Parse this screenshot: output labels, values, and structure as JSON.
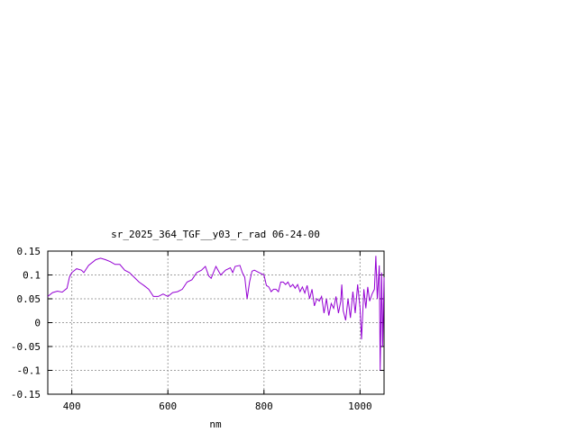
{
  "chart_data": {
    "type": "line",
    "title": "sr_2025_364_TGF__y03_r_rad 06-24-00",
    "xlabel": "nm",
    "ylabel": "",
    "xlim": [
      350,
      1050
    ],
    "ylim": [
      -0.15,
      0.15
    ],
    "grid": true,
    "legend": "none",
    "x_ticks": [
      400,
      600,
      800,
      1000
    ],
    "x_tick_labels": [
      "400",
      "600",
      "800",
      "1000"
    ],
    "y_ticks": [
      0.15,
      0.1,
      0.05,
      0,
      -0.05,
      -0.1,
      -0.15
    ],
    "y_tick_labels": [
      "0.15",
      "0.1",
      "0.05",
      "0",
      "-0.05",
      "-0.1",
      "-0.15"
    ],
    "series": [
      {
        "color": "#9400d3",
        "points": [
          [
            350,
            0.055
          ],
          [
            360,
            0.063
          ],
          [
            370,
            0.066
          ],
          [
            380,
            0.064
          ],
          [
            390,
            0.072
          ],
          [
            395,
            0.095
          ],
          [
            400,
            0.105
          ],
          [
            410,
            0.113
          ],
          [
            420,
            0.11
          ],
          [
            425,
            0.105
          ],
          [
            435,
            0.12
          ],
          [
            450,
            0.132
          ],
          [
            460,
            0.135
          ],
          [
            470,
            0.132
          ],
          [
            480,
            0.128
          ],
          [
            490,
            0.122
          ],
          [
            500,
            0.122
          ],
          [
            510,
            0.11
          ],
          [
            520,
            0.105
          ],
          [
            530,
            0.095
          ],
          [
            540,
            0.085
          ],
          [
            550,
            0.078
          ],
          [
            560,
            0.07
          ],
          [
            570,
            0.055
          ],
          [
            580,
            0.055
          ],
          [
            590,
            0.06
          ],
          [
            600,
            0.055
          ],
          [
            610,
            0.063
          ],
          [
            620,
            0.065
          ],
          [
            630,
            0.07
          ],
          [
            640,
            0.085
          ],
          [
            650,
            0.09
          ],
          [
            660,
            0.105
          ],
          [
            670,
            0.11
          ],
          [
            678,
            0.118
          ],
          [
            685,
            0.098
          ],
          [
            690,
            0.093
          ],
          [
            700,
            0.118
          ],
          [
            710,
            0.1
          ],
          [
            720,
            0.11
          ],
          [
            730,
            0.115
          ],
          [
            735,
            0.105
          ],
          [
            740,
            0.118
          ],
          [
            750,
            0.12
          ],
          [
            755,
            0.105
          ],
          [
            760,
            0.095
          ],
          [
            765,
            0.05
          ],
          [
            770,
            0.085
          ],
          [
            775,
            0.108
          ],
          [
            780,
            0.11
          ],
          [
            790,
            0.105
          ],
          [
            800,
            0.1
          ],
          [
            805,
            0.078
          ],
          [
            810,
            0.075
          ],
          [
            815,
            0.065
          ],
          [
            820,
            0.07
          ],
          [
            825,
            0.07
          ],
          [
            830,
            0.065
          ],
          [
            835,
            0.085
          ],
          [
            840,
            0.085
          ],
          [
            845,
            0.08
          ],
          [
            850,
            0.085
          ],
          [
            855,
            0.075
          ],
          [
            860,
            0.08
          ],
          [
            865,
            0.072
          ],
          [
            870,
            0.08
          ],
          [
            875,
            0.065
          ],
          [
            880,
            0.075
          ],
          [
            885,
            0.062
          ],
          [
            890,
            0.078
          ],
          [
            895,
            0.05
          ],
          [
            900,
            0.07
          ],
          [
            905,
            0.035
          ],
          [
            910,
            0.05
          ],
          [
            915,
            0.045
          ],
          [
            920,
            0.055
          ],
          [
            925,
            0.02
          ],
          [
            930,
            0.05
          ],
          [
            935,
            0.015
          ],
          [
            940,
            0.04
          ],
          [
            945,
            0.03
          ],
          [
            950,
            0.055
          ],
          [
            955,
            0.02
          ],
          [
            960,
            0.045
          ],
          [
            962,
            0.08
          ],
          [
            965,
            0.025
          ],
          [
            970,
            0.005
          ],
          [
            975,
            0.05
          ],
          [
            980,
            0.01
          ],
          [
            985,
            0.065
          ],
          [
            990,
            0.02
          ],
          [
            995,
            0.08
          ],
          [
            1000,
            0.03
          ],
          [
            1003,
            -0.035
          ],
          [
            1008,
            0.07
          ],
          [
            1012,
            0.03
          ],
          [
            1016,
            0.075
          ],
          [
            1020,
            0.045
          ],
          [
            1025,
            0.06
          ],
          [
            1030,
            0.07
          ],
          [
            1033,
            0.14
          ],
          [
            1036,
            0.05
          ],
          [
            1040,
            0.12
          ],
          [
            1042,
            -0.1
          ],
          [
            1045,
            0.105
          ],
          [
            1047,
            -0.05
          ],
          [
            1050,
            0.095
          ]
        ]
      }
    ]
  }
}
